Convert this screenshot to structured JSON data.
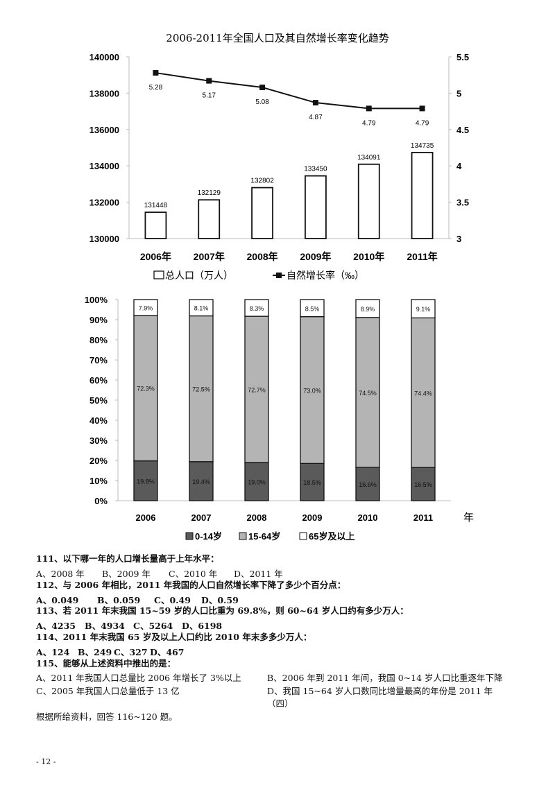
{
  "chart_data": [
    {
      "type": "bar+line",
      "title": "2006-2011年全国人口及其自然增长率变化趋势",
      "categories": [
        "2006年",
        "2007年",
        "2008年",
        "2009年",
        "2010年",
        "2011年"
      ],
      "series": [
        {
          "name": "总人口（万人）",
          "type": "bar",
          "axis": "left",
          "values": [
            131448,
            132129,
            132802,
            133450,
            134091,
            134735
          ]
        },
        {
          "name": "自然增长率（‰）",
          "type": "line",
          "axis": "right",
          "values": [
            5.28,
            5.17,
            5.08,
            4.87,
            4.79,
            4.79
          ]
        }
      ],
      "ylim_left": [
        130000,
        140000
      ],
      "yticks_left": [
        "130000",
        "132000",
        "134000",
        "136000",
        "138000",
        "140000"
      ],
      "ylim_right": [
        3,
        5.5
      ],
      "yticks_right": [
        "3",
        "3.5",
        "4",
        "4.5",
        "5",
        "5.5"
      ],
      "data_labels_left": [
        "131448",
        "132129",
        "132802",
        "133450",
        "134091",
        "134735"
      ],
      "data_labels_right": [
        "5.28",
        "5.17",
        "5.08",
        "4.87",
        "4.79",
        "4.79"
      ],
      "legend": "bottom",
      "grid": false,
      "colors": {
        "bar_fill": "#ffffff",
        "bar_stroke": "#111111",
        "line": "#111111"
      }
    },
    {
      "type": "stacked-bar",
      "categories": [
        "2006",
        "2007",
        "2008",
        "2009",
        "2010",
        "2011"
      ],
      "xlabel": "年",
      "series": [
        {
          "name": "0-14岁",
          "values": [
            19.8,
            19.4,
            19.0,
            18.5,
            16.6,
            16.5
          ],
          "labels": [
            "19.8%",
            "19.4%",
            "19.0%",
            "18.5%",
            "16.6%",
            "16.5%"
          ],
          "color": "#5a5a5a"
        },
        {
          "name": "15-64岁",
          "values": [
            72.3,
            72.5,
            72.7,
            73.0,
            74.5,
            74.4
          ],
          "labels": [
            "72.3%",
            "72.5%",
            "72.7%",
            "73.0%",
            "74.5%",
            "74.4%"
          ],
          "color": "#b4b4b4"
        },
        {
          "name": "65岁及以上",
          "values": [
            7.9,
            8.1,
            8.3,
            8.5,
            8.9,
            9.1
          ],
          "labels": [
            "7.9%",
            "8.1%",
            "8.3%",
            "8.5%",
            "8.9%",
            "9.1%"
          ],
          "color": "#ffffff"
        }
      ],
      "ylim": [
        0,
        100
      ],
      "yticks": [
        "0%",
        "10%",
        "20%",
        "30%",
        "40%",
        "50%",
        "60%",
        "70%",
        "80%",
        "90%",
        "100%"
      ],
      "legend": "bottom",
      "grid": false
    }
  ],
  "questions": [
    {
      "stem": "111、以下哪一年的人口增长量高于上年水平：",
      "options": [
        "A、2008 年",
        "B、2009 年",
        "C、2010 年",
        "D、2011 年"
      ]
    },
    {
      "stem": "112、与 2006 年相比，2011 年我国的人口自然增长率下降了多少个百分点：",
      "options": [
        "A、0.049",
        "B、0.059",
        "C、0.49",
        "D、0.59"
      ]
    },
    {
      "stem": "113、若 2011 年末我国 15~59 岁的人口比重为 69.8%，则 60~64 岁人口约有多少万人：",
      "options": [
        "A、4235",
        "B、4934",
        "C、5264",
        "D、6198"
      ]
    },
    {
      "stem": "114、2011 年末我国 65 岁及以上人口约比 2010 年末多多少万人：",
      "options": [
        "A、124",
        "B、249",
        "C、327",
        "D、467"
      ]
    },
    {
      "stem": "115、能够从上述资料中推出的是：",
      "options": [
        "A、2011 年我国人口总量比 2006 年增长了 3%以上",
        "B、2006 年到 2011 年间，我国 0~14 岁人口比重逐年下降",
        "C、2005 年我国人口总量低于 13 亿",
        "D、我国 15~64 岁人口数同比增量最高的年份是 2011 年"
      ]
    }
  ],
  "section_mark": "（四）",
  "instruction": "根据所给资料，回答 116~120 题。",
  "page_number": "- 12 -"
}
